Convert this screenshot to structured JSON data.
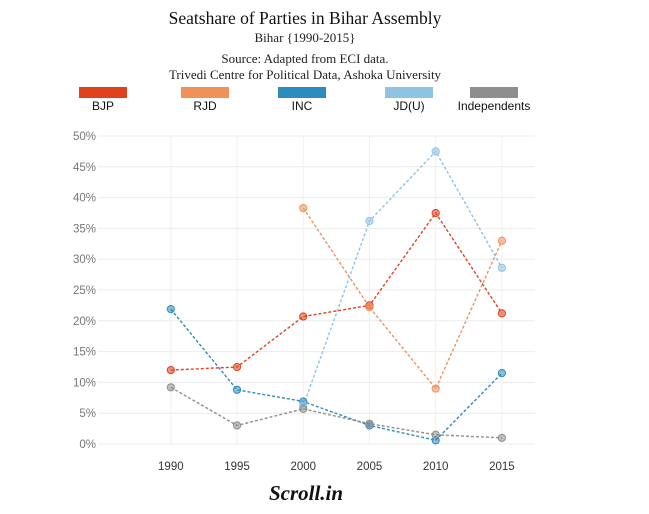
{
  "chart_data": {
    "type": "line",
    "title": "Seatshare of Parties in Bihar Assembly",
    "subtitle": "Bihar {1990-2015}",
    "source_line1": "Source: Adapted from ECI data.",
    "source_line2": "Trivedi Centre for Political Data, Ashoka University",
    "logo_text": "Scroll.in",
    "x": [
      1990,
      1995,
      2000,
      2005,
      2010,
      2015
    ],
    "x_tick_labels": [
      "1990",
      "1995",
      "2000",
      "2005",
      "2010",
      "2015"
    ],
    "y_ticks": [
      0,
      5,
      10,
      15,
      20,
      25,
      30,
      35,
      40,
      45,
      50
    ],
    "y_tick_labels": [
      "0%",
      "5%",
      "10%",
      "15%",
      "20%",
      "25%",
      "30%",
      "35%",
      "40%",
      "45%",
      "50%"
    ],
    "xlim": [
      1984.5,
      2017.5
    ],
    "ylim": [
      0,
      50
    ],
    "grid": true,
    "legend_position": "top",
    "series": [
      {
        "name": "BJP",
        "color": "#e0421f",
        "x": [
          1990,
          1995,
          2000,
          2005,
          2010,
          2015
        ],
        "values": [
          12.0,
          12.5,
          20.7,
          22.5,
          37.5,
          21.2
        ]
      },
      {
        "name": "RJD",
        "color": "#f0915a",
        "x": [
          2000,
          2005,
          2010,
          2015
        ],
        "values": [
          38.3,
          22.2,
          9.0,
          33.0
        ]
      },
      {
        "name": "INC",
        "color": "#2b8cbe",
        "x": [
          1990,
          1995,
          2000,
          2005,
          2010,
          2015
        ],
        "values": [
          21.9,
          8.8,
          6.9,
          3.0,
          0.6,
          11.5
        ]
      },
      {
        "name": "JD(U)",
        "color": "#8fc3e3",
        "x": [
          2000,
          2005,
          2010,
          2015
        ],
        "values": [
          6.2,
          36.2,
          47.5,
          28.6
        ]
      },
      {
        "name": "Independents",
        "color": "#8e8e8e",
        "x": [
          1990,
          1995,
          2000,
          2005,
          2010,
          2015
        ],
        "values": [
          9.2,
          3.0,
          5.7,
          3.3,
          1.5,
          1.0
        ]
      }
    ]
  }
}
